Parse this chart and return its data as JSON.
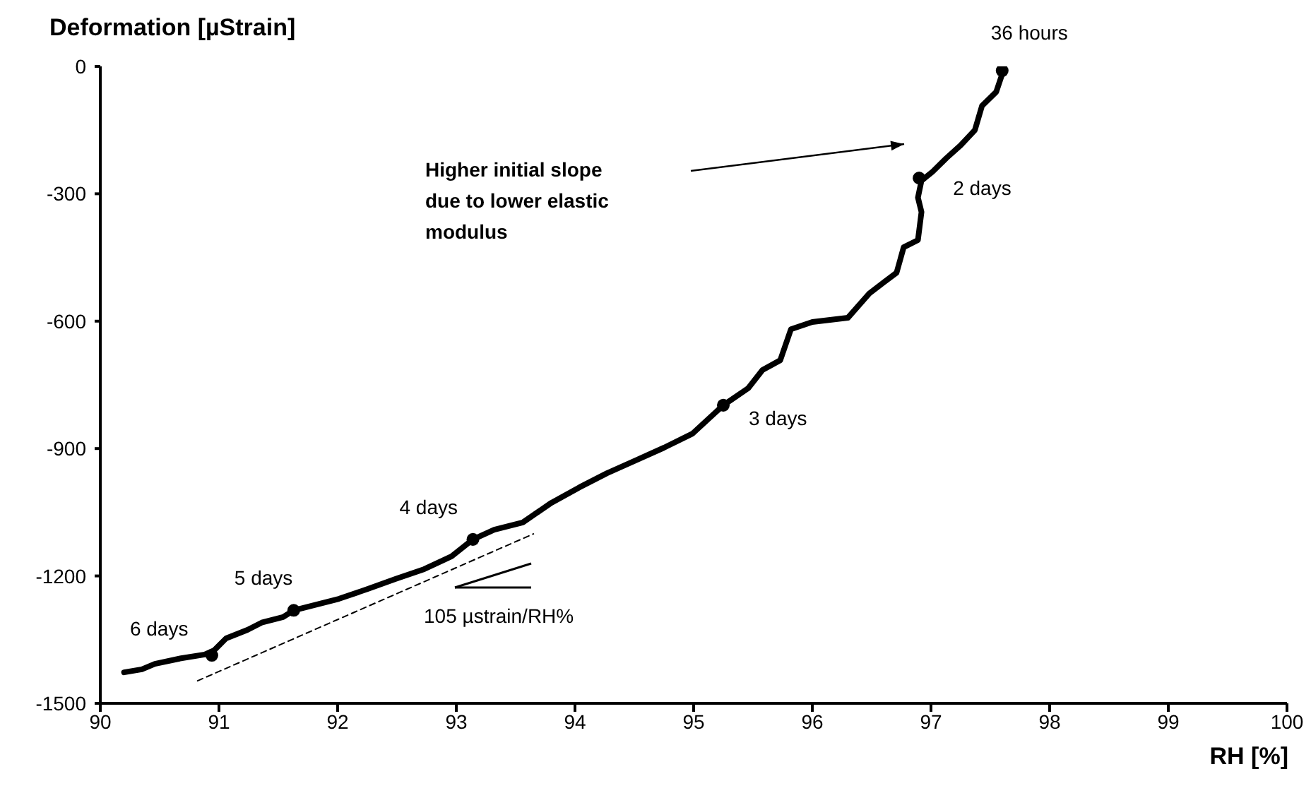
{
  "chart_data": {
    "type": "line",
    "ylabel": "Deformation [µStrain]",
    "xlabel": "RH [%]",
    "xlim": [
      90,
      100
    ],
    "xticks": [
      90,
      91,
      92,
      93,
      94,
      95,
      96,
      97,
      98,
      99,
      100
    ],
    "ylim": [
      -1500,
      0
    ],
    "yticks": [
      -1500,
      -1200,
      -900,
      -600,
      -300,
      0
    ],
    "series": [
      {
        "color": "#000000",
        "line_style": "solid",
        "marker": "none",
        "x": [
          90.2,
          90.35,
          90.46,
          90.68,
          90.88,
          90.96,
          91.06,
          91.24,
          91.36,
          91.54,
          91.63,
          91.77,
          92.01,
          92.25,
          92.49,
          92.73,
          92.96,
          93.14,
          93.32,
          93.56,
          93.8,
          94.04,
          94.27,
          94.51,
          94.75,
          94.99,
          95.25,
          95.46,
          95.58,
          95.73,
          95.82,
          96.0,
          96.3,
          96.48,
          96.6,
          96.71,
          96.77,
          96.89,
          96.92,
          96.89,
          96.92,
          97.01,
          97.13,
          97.25,
          97.37,
          97.43,
          97.55,
          97.61
        ],
        "values": [
          -1427,
          -1420,
          -1407,
          -1394,
          -1385,
          -1375,
          -1347,
          -1327,
          -1310,
          -1297,
          -1281,
          -1271,
          -1254,
          -1231,
          -1207,
          -1184,
          -1154,
          -1114,
          -1091,
          -1074,
          -1028,
          -991,
          -958,
          -928,
          -898,
          -865,
          -798,
          -758,
          -715,
          -692,
          -619,
          -602,
          -592,
          -535,
          -509,
          -486,
          -426,
          -409,
          -343,
          -309,
          -269,
          -249,
          -216,
          -186,
          -150,
          -93,
          -60,
          -10
        ]
      },
      {
        "type": "scatter",
        "color": "#000000",
        "marker": "circle",
        "x": [
          97.6,
          96.9,
          95.25,
          93.14,
          91.63,
          90.94
        ],
        "values": [
          -10,
          -263,
          -798,
          -1114,
          -1281,
          -1387
        ]
      },
      {
        "color": "#000000",
        "line_style": "dashed",
        "marker": "none",
        "x": [
          90.82,
          93.65
        ],
        "values": [
          -1447,
          -1101
        ]
      }
    ],
    "annotations": [
      {
        "text": "36 hours",
        "x": 97.6,
        "y": -10
      },
      {
        "text": "2 days",
        "x": 96.9,
        "y": -263
      },
      {
        "text": "3 days",
        "x": 95.25,
        "y": -798
      },
      {
        "text": "4 days",
        "x": 93.14,
        "y": -1114
      },
      {
        "text": "5 days",
        "x": 91.63,
        "y": -1281
      },
      {
        "text": "6 days",
        "x": 90.94,
        "y": -1387
      },
      "Higher initial slope\ndue to lower elastic\nmodulus",
      "105 µstrain/RH%"
    ]
  }
}
